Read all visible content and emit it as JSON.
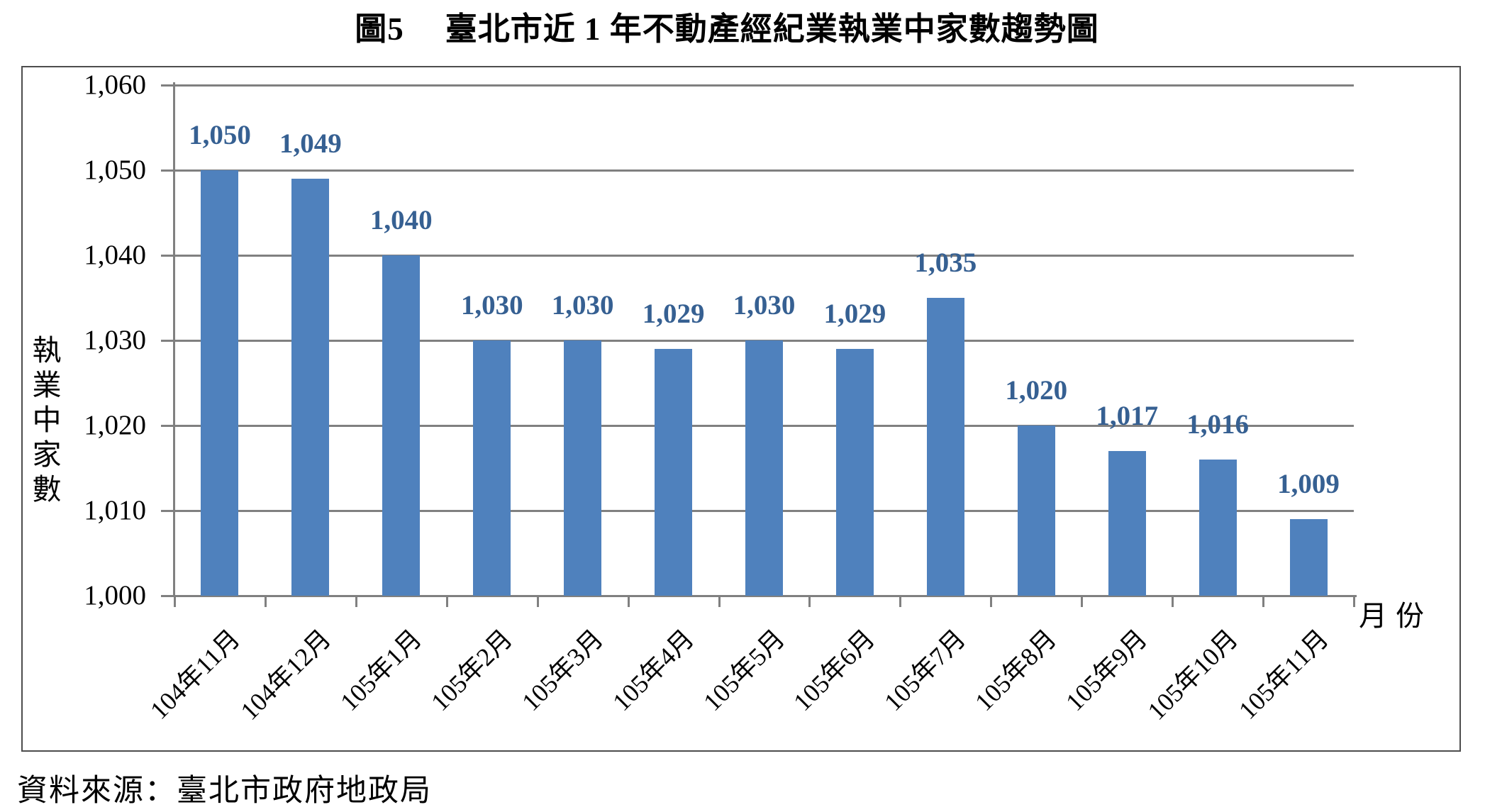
{
  "title": {
    "prefix": "圖5",
    "text": "臺北市近 1 年不動產經紀業執業中家數趨勢圖"
  },
  "source_note": "資料來源：臺北市政府地政局",
  "chart_data": {
    "type": "bar",
    "title": "圖5 臺北市近 1 年不動產經紀業執業中家數趨勢圖",
    "categories": [
      "104年11月",
      "104年12月",
      "105年1月",
      "105年2月",
      "105年3月",
      "105年4月",
      "105年5月",
      "105年6月",
      "105年7月",
      "105年8月",
      "105年9月",
      "105年10月",
      "105年11月"
    ],
    "values": [
      1050,
      1049,
      1040,
      1030,
      1030,
      1029,
      1030,
      1029,
      1035,
      1020,
      1017,
      1016,
      1009
    ],
    "data_labels": [
      "1,050",
      "1,049",
      "1,040",
      "1,030",
      "1,030",
      "1,029",
      "1,030",
      "1,029",
      "1,035",
      "1,020",
      "1,017",
      "1,016",
      "1,009"
    ],
    "ylabel": "執業中家數",
    "xlabel": "月份",
    "y_ticks": [
      "1,060",
      "1,050",
      "1,040",
      "1,030",
      "1,020",
      "1,010",
      "1,000"
    ],
    "ylim": [
      1000,
      1060
    ],
    "y_step": 10,
    "grid": true,
    "legend": "none",
    "colors": {
      "bar": "#4F81BD",
      "data_label": "#366092",
      "gridline": "#808080",
      "axis": "#808080",
      "frame_border": "#4d4d4d",
      "text": "#000000"
    }
  }
}
